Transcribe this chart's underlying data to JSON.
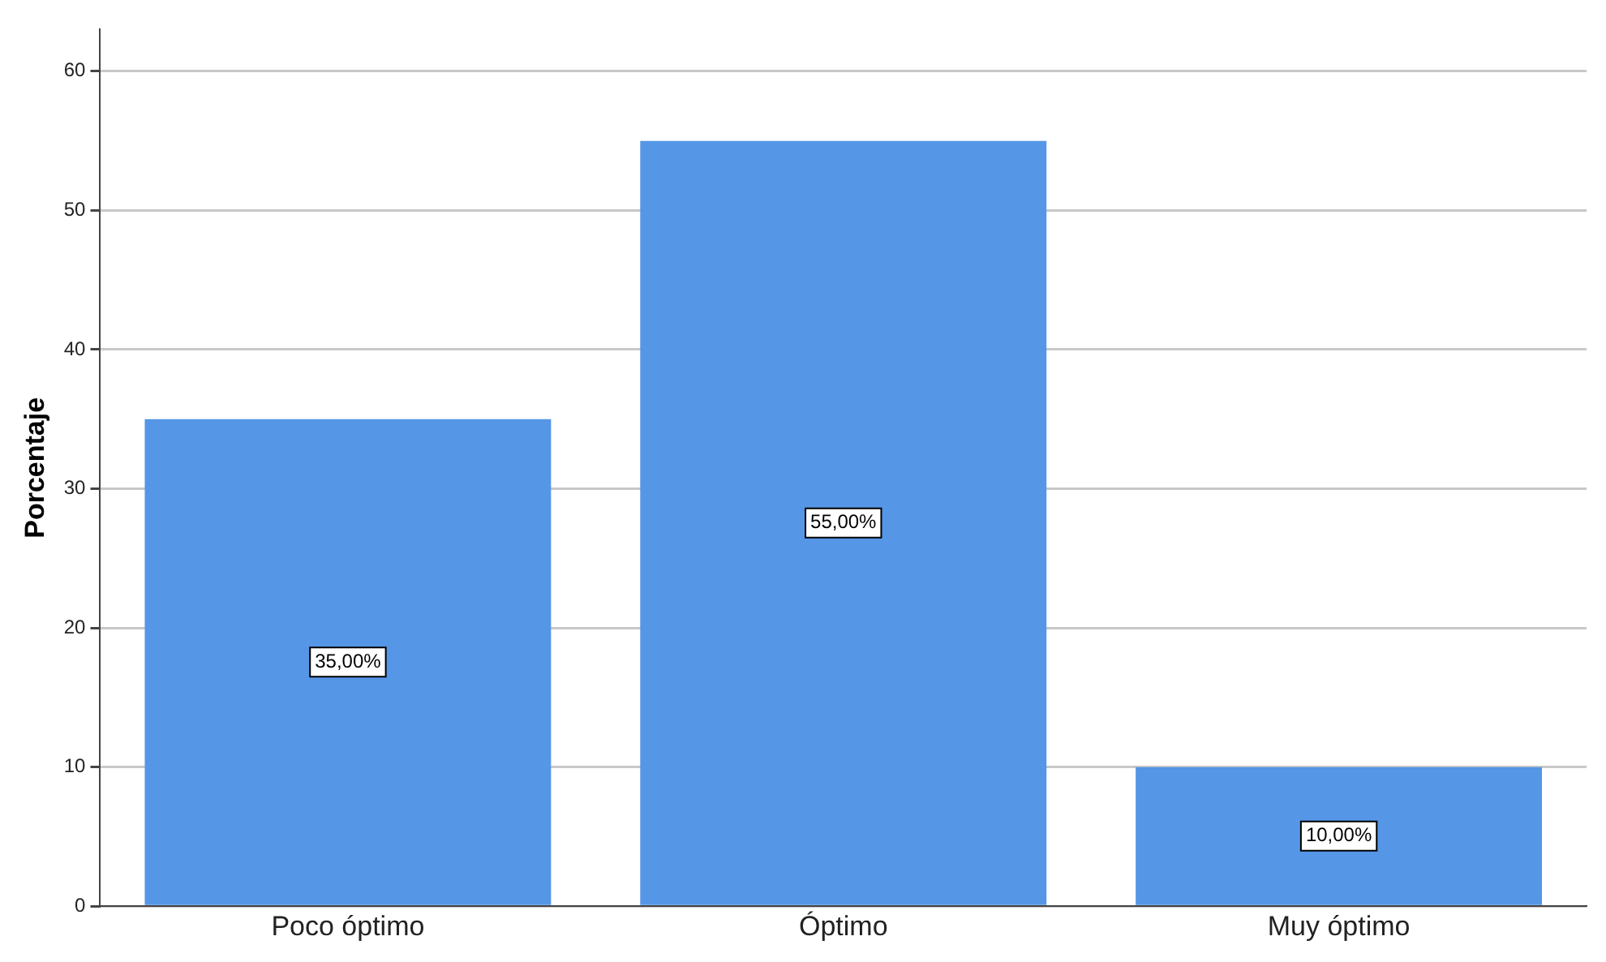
{
  "chart_data": {
    "type": "bar",
    "ylabel": "Porcentaje",
    "categories": [
      "Poco óptimo",
      "Óptimo",
      "Muy óptimo"
    ],
    "values": [
      35,
      55,
      10
    ],
    "color": "#5596e6",
    "value_labels": [
      "35,00%",
      "55,00%",
      "10,00%"
    ],
    "ylim": [
      0,
      63
    ],
    "yticks": [
      0,
      10,
      20,
      30,
      40,
      50,
      60
    ],
    "grid": "y",
    "legend": false
  }
}
